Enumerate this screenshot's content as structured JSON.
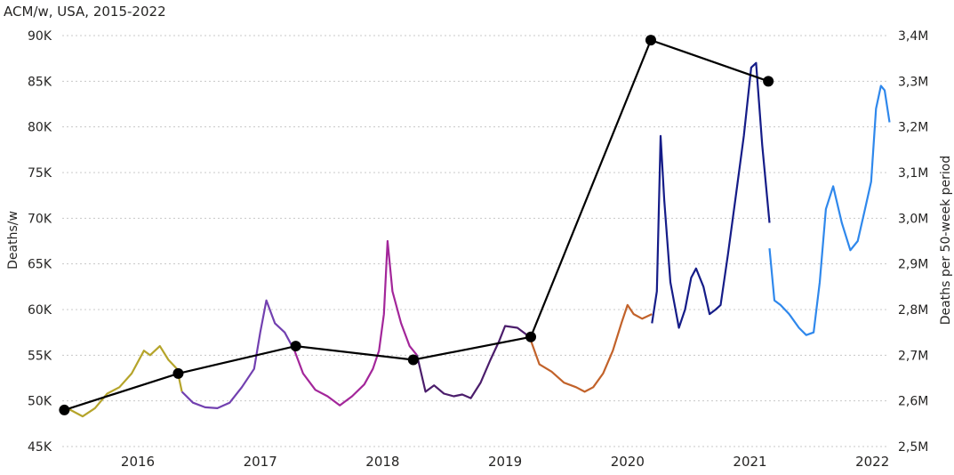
{
  "chart_data": {
    "type": "line",
    "title": "ACM/w, USA, 2015-2022",
    "ylabel": "Deaths/w",
    "y2label": "Deaths per 50-week period",
    "xticks": [
      "2016",
      "2017",
      "2018",
      "2019",
      "2020",
      "2021",
      "2022"
    ],
    "xticks_year": [
      2016,
      2017,
      2018,
      2019,
      2020,
      2021,
      2022
    ],
    "xlim": [
      2015.35,
      2022.35
    ],
    "ylim": [
      45000,
      90000
    ],
    "yticks": [
      45000,
      50000,
      55000,
      60000,
      65000,
      70000,
      75000,
      80000,
      85000,
      90000
    ],
    "ytick_labels": [
      "45K",
      "50K",
      "55K",
      "60K",
      "65K",
      "70K",
      "75K",
      "80K",
      "85K",
      "90K"
    ],
    "y2lim": [
      2500000,
      3400000
    ],
    "y2ticks": [
      2500000,
      2600000,
      2700000,
      2800000,
      2900000,
      3000000,
      3100000,
      3200000,
      3300000,
      3400000
    ],
    "y2tick_labels": [
      "2,5M",
      "2,6M",
      "2,7M",
      "2,8M",
      "2,9M",
      "3,0M",
      "3,1M",
      "3,2M",
      "3,3M",
      "3,4M"
    ],
    "grid": true,
    "weekly_series": [
      {
        "color": "#b5a42a",
        "x": [
          2015.4,
          2015.45,
          2015.55,
          2015.65,
          2015.75,
          2015.85,
          2015.95,
          2016.05,
          2016.1,
          2016.18,
          2016.25,
          2016.32,
          2016.36
        ],
        "y": [
          49500,
          49000,
          48300,
          49200,
          50800,
          51500,
          53000,
          55500,
          55000,
          56000,
          54500,
          53500,
          51000
        ]
      },
      {
        "color": "#7240b0",
        "x": [
          2016.36,
          2016.45,
          2016.55,
          2016.65,
          2016.75,
          2016.85,
          2016.95,
          2017.0,
          2017.05,
          2017.12,
          2017.2,
          2017.28
        ],
        "y": [
          51000,
          49800,
          49300,
          49200,
          49800,
          51500,
          53500,
          57500,
          61000,
          58500,
          57500,
          55500
        ]
      },
      {
        "color": "#a3269a",
        "x": [
          2017.28,
          2017.35,
          2017.45,
          2017.55,
          2017.65,
          2017.75,
          2017.85,
          2017.92,
          2017.97,
          2018.01,
          2018.04,
          2018.08,
          2018.15,
          2018.22,
          2018.28
        ],
        "y": [
          55500,
          53000,
          51200,
          50500,
          49500,
          50500,
          51800,
          53500,
          55500,
          59500,
          67500,
          62000,
          58500,
          56000,
          55000
        ]
      },
      {
        "color": "#4b1d6b",
        "x": [
          2018.28,
          2018.35,
          2018.42,
          2018.5,
          2018.58,
          2018.65,
          2018.72,
          2018.8,
          2018.88,
          2018.95,
          2019.0,
          2019.1,
          2019.2
        ],
        "y": [
          55000,
          51000,
          51700,
          50800,
          50500,
          50700,
          50300,
          52000,
          54500,
          56500,
          58200,
          58000,
          57000
        ]
      },
      {
        "color": "#c2622a",
        "x": [
          2019.2,
          2019.28,
          2019.38,
          2019.48,
          2019.58,
          2019.65,
          2019.72,
          2019.8,
          2019.88,
          2019.95,
          2020.0,
          2020.05,
          2020.12,
          2020.2
        ],
        "y": [
          57000,
          54000,
          53200,
          52000,
          51500,
          51000,
          51500,
          53000,
          55500,
          58500,
          60500,
          59500,
          59000,
          59500
        ]
      },
      {
        "color": "#151c88",
        "x": [
          2020.2,
          2020.24,
          2020.27,
          2020.3,
          2020.35,
          2020.42,
          2020.47,
          2020.52,
          2020.56,
          2020.62,
          2020.67,
          2020.72,
          2020.76,
          2020.82,
          2020.88,
          2020.95,
          2021.01,
          2021.05,
          2021.1,
          2021.16
        ],
        "y": [
          58500,
          62000,
          79000,
          72000,
          63000,
          58000,
          60000,
          63500,
          64500,
          62500,
          59500,
          60000,
          60500,
          66000,
          72000,
          79000,
          86500,
          87000,
          78000,
          69500
        ]
      },
      {
        "color": "#2f88ec",
        "x": [
          2021.16,
          2021.2,
          2021.25,
          2021.32,
          2021.4,
          2021.46,
          2021.52,
          2021.57,
          2021.62,
          2021.68,
          2021.75,
          2021.82,
          2021.88,
          2021.94,
          2021.99,
          2022.03,
          2022.07,
          2022.1,
          2022.14
        ],
        "y": [
          66700,
          61000,
          60500,
          59500,
          58000,
          57200,
          57500,
          63000,
          71000,
          73500,
          69500,
          66500,
          67500,
          71000,
          74000,
          82000,
          84500,
          84000,
          80500
        ]
      }
    ],
    "period_series": {
      "color": "#000000",
      "x": [
        2015.4,
        2016.33,
        2017.29,
        2018.25,
        2019.21,
        2020.19,
        2021.15
      ],
      "y": [
        2580000,
        2660000,
        2720000,
        2690000,
        2740000,
        3390000,
        3300000
      ]
    }
  }
}
